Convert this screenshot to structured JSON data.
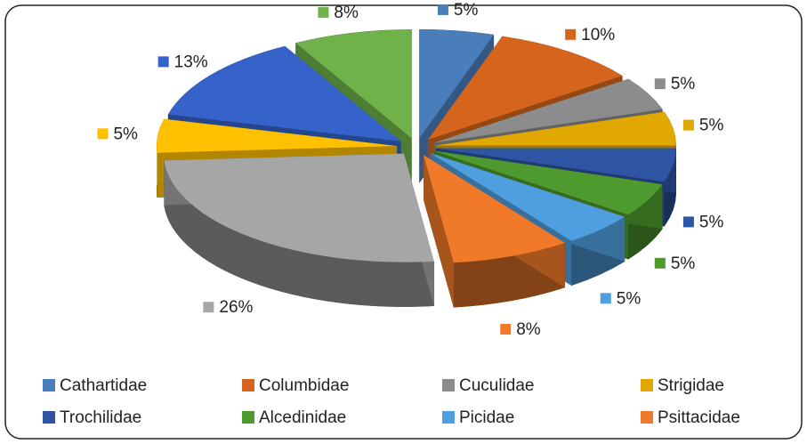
{
  "chart_data": {
    "type": "pie",
    "categories": [
      "Cathartidae",
      "Columbidae",
      "Cuculidae",
      "Strigidae",
      "Trochilidae",
      "Alcedinidae",
      "Picidae",
      "Psittacidae",
      null,
      null,
      null,
      null
    ],
    "values": [
      5,
      10,
      5,
      5,
      5,
      5,
      5,
      8,
      26,
      5,
      13,
      8
    ],
    "value_labels": [
      "5%",
      "10%",
      "5%",
      "5%",
      "5%",
      "5%",
      "5%",
      "8%",
      "26%",
      "5%",
      "13%",
      "8%"
    ],
    "colors": [
      "#4a7ebb",
      "#d5651d",
      "#8c8c8c",
      "#e0a800",
      "#2e55a3",
      "#4e9a2e",
      "#4f9fe0",
      "#f07a2a",
      "#a6a6a6",
      "#ffc000",
      "#3563c9",
      "#6fb24a"
    ],
    "legend": "bottom"
  }
}
